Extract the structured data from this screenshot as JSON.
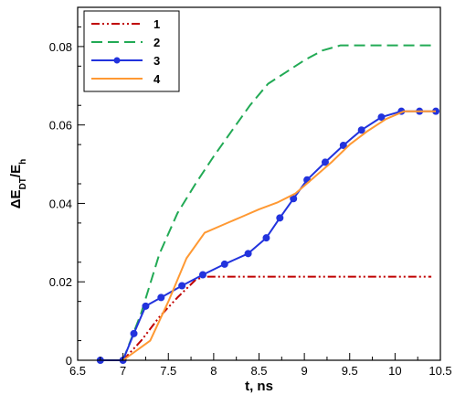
{
  "chart_data": {
    "type": "line",
    "xlabel": "t, ns",
    "ylabel": {
      "delta": "Δ",
      "main": "E",
      "sub": "DT",
      "slash": "/E",
      "sub2": "h"
    },
    "xlim": [
      6.5,
      10.5
    ],
    "ylim": [
      0,
      0.09
    ],
    "xticks": [
      {
        "v": 6.5,
        "label": "6.5"
      },
      {
        "v": 7,
        "label": "7"
      },
      {
        "v": 7.5,
        "label": "7.5"
      },
      {
        "v": 8,
        "label": "8"
      },
      {
        "v": 8.5,
        "label": "8.5"
      },
      {
        "v": 9,
        "label": "9"
      },
      {
        "v": 9.5,
        "label": "9.5"
      },
      {
        "v": 10,
        "label": "10"
      },
      {
        "v": 10.5,
        "label": "10.5"
      }
    ],
    "yticks": [
      {
        "v": 0,
        "label": "0"
      },
      {
        "v": 0.02,
        "label": "0.02"
      },
      {
        "v": 0.04,
        "label": "0.04"
      },
      {
        "v": 0.06,
        "label": "0.06"
      },
      {
        "v": 0.08,
        "label": "0.08"
      }
    ],
    "grid": false,
    "legend_position": "top-left",
    "series": [
      {
        "name": "1",
        "color": "#c00000",
        "style": "dash-dot-dot",
        "markers": false,
        "x": [
          7.0,
          7.2,
          7.4,
          7.6,
          7.8,
          7.9,
          8.0,
          9.0,
          10.4
        ],
        "y": [
          0.0,
          0.005,
          0.011,
          0.016,
          0.0205,
          0.0213,
          0.0213,
          0.0213,
          0.0213
        ]
      },
      {
        "name": "2",
        "color": "#22aa55",
        "style": "dashed",
        "markers": false,
        "x": [
          7.0,
          7.2,
          7.4,
          7.6,
          7.8,
          8.0,
          8.2,
          8.4,
          8.6,
          8.8,
          9.0,
          9.2,
          9.4,
          10.4
        ],
        "y": [
          0.0,
          0.012,
          0.027,
          0.0375,
          0.045,
          0.052,
          0.0585,
          0.065,
          0.0705,
          0.0735,
          0.0765,
          0.079,
          0.0803,
          0.0803
        ]
      },
      {
        "name": "3",
        "color": "#2233dd",
        "style": "solid",
        "markers": true,
        "x": [
          6.75,
          7.0,
          7.12,
          7.25,
          7.42,
          7.65,
          7.88,
          8.12,
          8.38,
          8.58,
          8.73,
          8.88,
          9.03,
          9.23,
          9.43,
          9.63,
          9.85,
          10.07,
          10.27,
          10.45
        ],
        "y": [
          0.0,
          0.0,
          0.0068,
          0.0138,
          0.016,
          0.019,
          0.0218,
          0.0245,
          0.0272,
          0.0312,
          0.0363,
          0.0412,
          0.046,
          0.0505,
          0.0548,
          0.0587,
          0.062,
          0.0635,
          0.0635,
          0.0635
        ]
      },
      {
        "name": "4",
        "color": "#ff9933",
        "style": "solid",
        "markers": false,
        "x": [
          7.0,
          7.3,
          7.5,
          7.7,
          7.9,
          8.1,
          8.3,
          8.5,
          8.7,
          8.9,
          9.1,
          9.3,
          9.5,
          9.7,
          9.9,
          10.1,
          10.45
        ],
        "y": [
          0.0,
          0.005,
          0.015,
          0.026,
          0.0325,
          0.0345,
          0.0365,
          0.0385,
          0.0402,
          0.0425,
          0.0465,
          0.0505,
          0.055,
          0.0585,
          0.0615,
          0.0635,
          0.0635
        ]
      }
    ]
  }
}
